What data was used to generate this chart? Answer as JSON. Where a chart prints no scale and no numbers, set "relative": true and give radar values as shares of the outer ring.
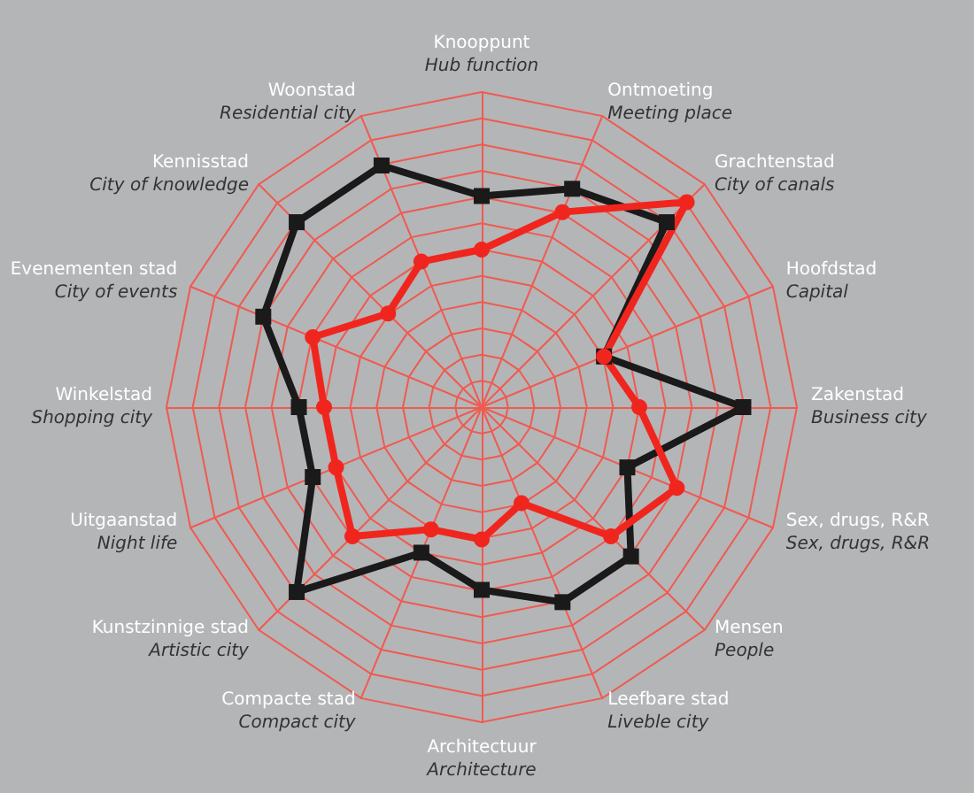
{
  "chart_data": {
    "type": "radar",
    "relative": true,
    "grid": true,
    "categories": [
      "Knooppunt\nHub function",
      "Ontmoeting\nMeeting place",
      "Grachtenstad\nCity of canals",
      "Hoofdstad\nCapital",
      "Zakenstad\nBusiness city",
      "Sex, drugs, R&R\nSex, drugs, R&R",
      "Mensen\nPeople",
      "Leefbare stad\nLiveble city",
      "Architectuur\nArchitecture",
      "Compacte stad\nCompact city",
      "Kunstzinnige stad\nArtistic city",
      "Uitgaanstad\nNight life",
      "Winkelstad\nShopping city",
      "Evenementen stad\nCity of events",
      "Kennisstad\nCity of knowledge",
      "Woonstad\nResidential city"
    ],
    "series": [
      {
        "color": "#1a1a1a",
        "marker": "square",
        "values": [
          0.67,
          0.75,
          0.83,
          0.42,
          0.83,
          0.5,
          0.67,
          0.67,
          0.58,
          0.5,
          0.83,
          0.58,
          0.58,
          0.75,
          0.83,
          0.83
        ]
      },
      {
        "color": "#f0261e",
        "marker": "circle",
        "values": [
          0.5,
          0.67,
          0.92,
          0.42,
          0.5,
          0.67,
          0.58,
          0.33,
          0.42,
          0.42,
          0.58,
          0.5,
          0.5,
          0.58,
          0.42,
          0.5
        ]
      }
    ]
  }
}
